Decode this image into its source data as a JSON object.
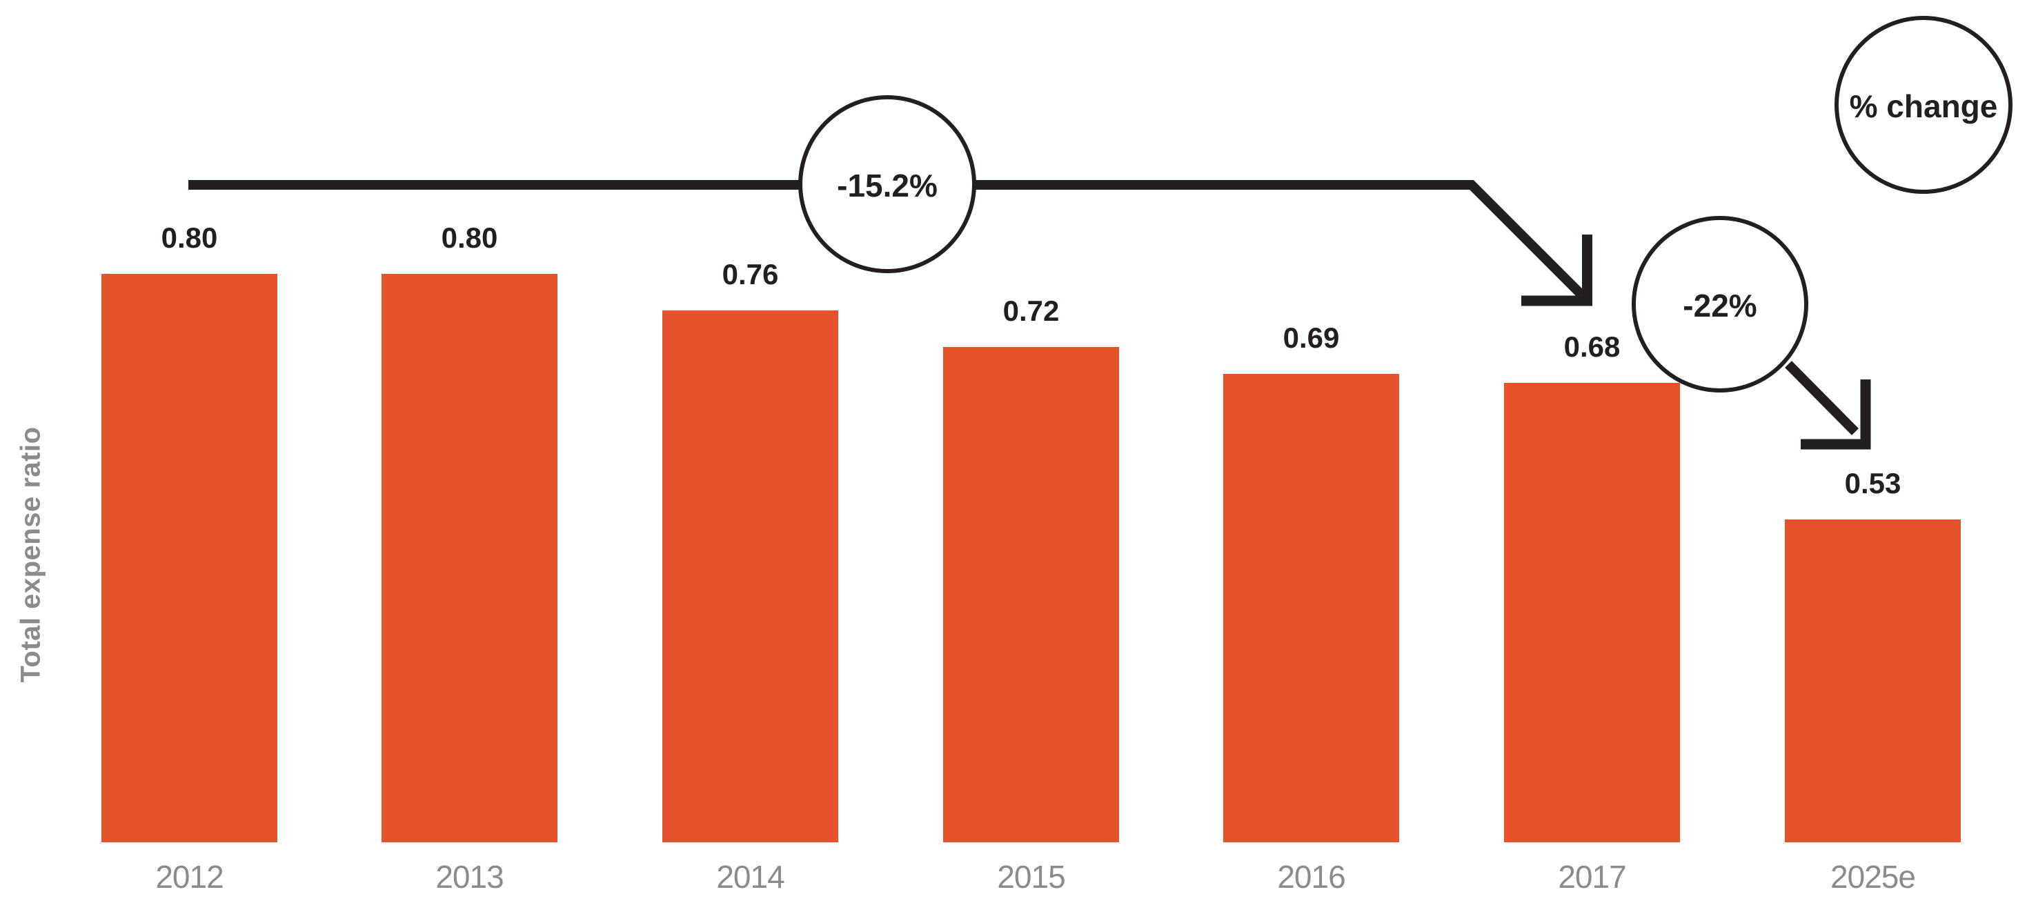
{
  "chart_data": {
    "type": "bar",
    "title": "",
    "xlabel": "",
    "ylabel": "Total expense ratio",
    "categories": [
      "2012",
      "2013",
      "2014",
      "2015",
      "2016",
      "2017",
      "2025e"
    ],
    "values": [
      0.8,
      0.8,
      0.76,
      0.72,
      0.69,
      0.68,
      0.53
    ],
    "value_labels": [
      "0.80",
      "0.80",
      "0.76",
      "0.72",
      "0.69",
      "0.68",
      "0.53"
    ],
    "grid": false,
    "legend_position": "top-right",
    "annotations": {
      "legend_badge": "% change",
      "changes": [
        {
          "label": "-15.2%"
        },
        {
          "label": "-22%"
        }
      ]
    },
    "colors": {
      "bar": "#E5532D",
      "annotation": "#231F20",
      "value_label": "#231F20",
      "axis_text": "#8B8B8B",
      "background": "#FFFFFF"
    }
  }
}
